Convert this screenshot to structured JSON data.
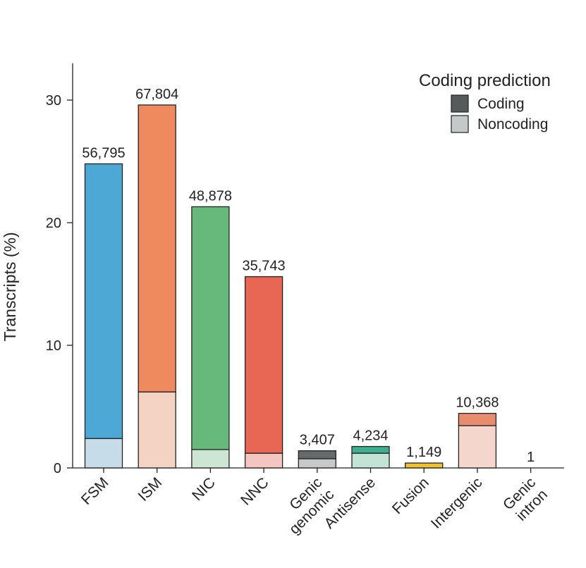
{
  "chart_data": {
    "type": "bar",
    "stacked": true,
    "ylabel": "Transcripts (%)",
    "ylim": [
      0,
      33
    ],
    "yticks": [
      0,
      10,
      20,
      30
    ],
    "grid": false,
    "legend": {
      "title": "Coding prediction",
      "placement": "top-right",
      "entries": [
        {
          "label": "Coding",
          "color": "#555a5a"
        },
        {
          "label": "Noncoding",
          "color": "#c3c9c9"
        }
      ]
    },
    "categories": [
      {
        "label": [
          "FSM"
        ],
        "count": "56,795",
        "total": 24.8,
        "noncoding": 2.4,
        "coding_color": "#4ea8d6",
        "noncoding_color": "#c6dce8"
      },
      {
        "label": [
          "ISM"
        ],
        "count": "67,804",
        "total": 29.6,
        "noncoding": 6.2,
        "coding_color": "#ee8a5e",
        "noncoding_color": "#f5d3c3"
      },
      {
        "label": [
          "NIC"
        ],
        "count": "48,878",
        "total": 21.3,
        "noncoding": 1.5,
        "coding_color": "#67b97b",
        "noncoding_color": "#cde6d3"
      },
      {
        "label": [
          "NNC"
        ],
        "count": "35,743",
        "total": 15.6,
        "noncoding": 1.2,
        "coding_color": "#e86654",
        "noncoding_color": "#f3c6c1"
      },
      {
        "label": [
          "Genic",
          "genomic"
        ],
        "count": "3,407",
        "total": 1.4,
        "noncoding": 0.75,
        "coding_color": "#666a6a",
        "noncoding_color": "#c6c9c9"
      },
      {
        "label": [
          "Antisense"
        ],
        "count": "4,234",
        "total": 1.75,
        "noncoding": 1.2,
        "coding_color": "#3fae8f",
        "noncoding_color": "#c3e3d7"
      },
      {
        "label": [
          "Fusion"
        ],
        "count": "1,149",
        "total": 0.4,
        "noncoding": 0.0,
        "coding_color": "#f2c12e",
        "noncoding_color": "#f8e3a4"
      },
      {
        "label": [
          "Intergenic"
        ],
        "count": "10,368",
        "total": 4.45,
        "noncoding": 3.45,
        "coding_color": "#e88c6e",
        "noncoding_color": "#f5d6cc"
      },
      {
        "label": [
          "Genic",
          "intron"
        ],
        "count": "1",
        "total": 0.0,
        "noncoding": 0.0,
        "coding_color": "#888888",
        "noncoding_color": "#dddddd"
      }
    ]
  }
}
